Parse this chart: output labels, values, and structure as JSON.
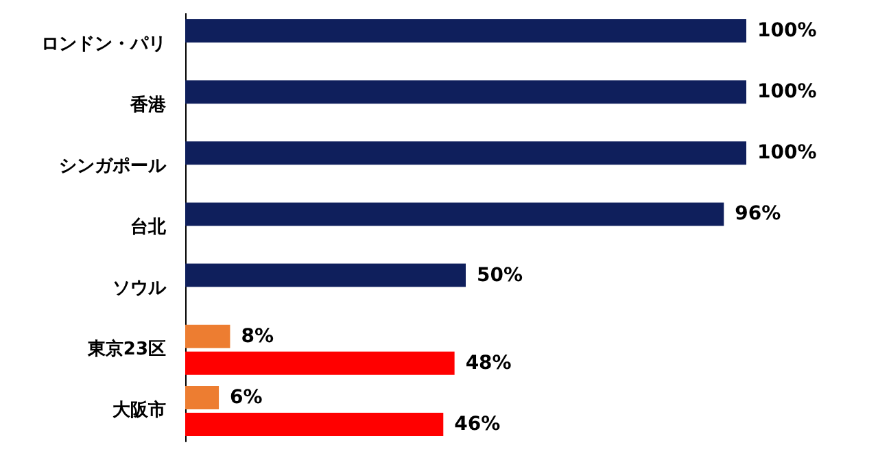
{
  "chart_data": {
    "type": "bar",
    "orientation": "horizontal",
    "categories": [
      "ロンドン・パリ",
      "香港",
      "シンガポール",
      "台北",
      "ソウル",
      "東京23区",
      "大阪市"
    ],
    "series": [
      {
        "colors": [
          "#0f1f5c",
          "#0f1f5c",
          "#0f1f5c",
          "#0f1f5c",
          "#0f1f5c",
          "#ed7d31",
          "#ed7d31"
        ],
        "values": [
          100,
          100,
          100,
          96,
          50,
          8,
          6
        ],
        "value_labels": [
          "100%",
          "100%",
          "100%",
          "96%",
          "50%",
          "8%",
          "6%"
        ]
      },
      {
        "color": "#ff0000",
        "values": [
          null,
          null,
          null,
          null,
          null,
          48,
          46
        ],
        "value_labels": [
          null,
          null,
          null,
          null,
          null,
          "48%",
          "46%"
        ]
      }
    ],
    "tick_labels": "y",
    "grid": false
  }
}
